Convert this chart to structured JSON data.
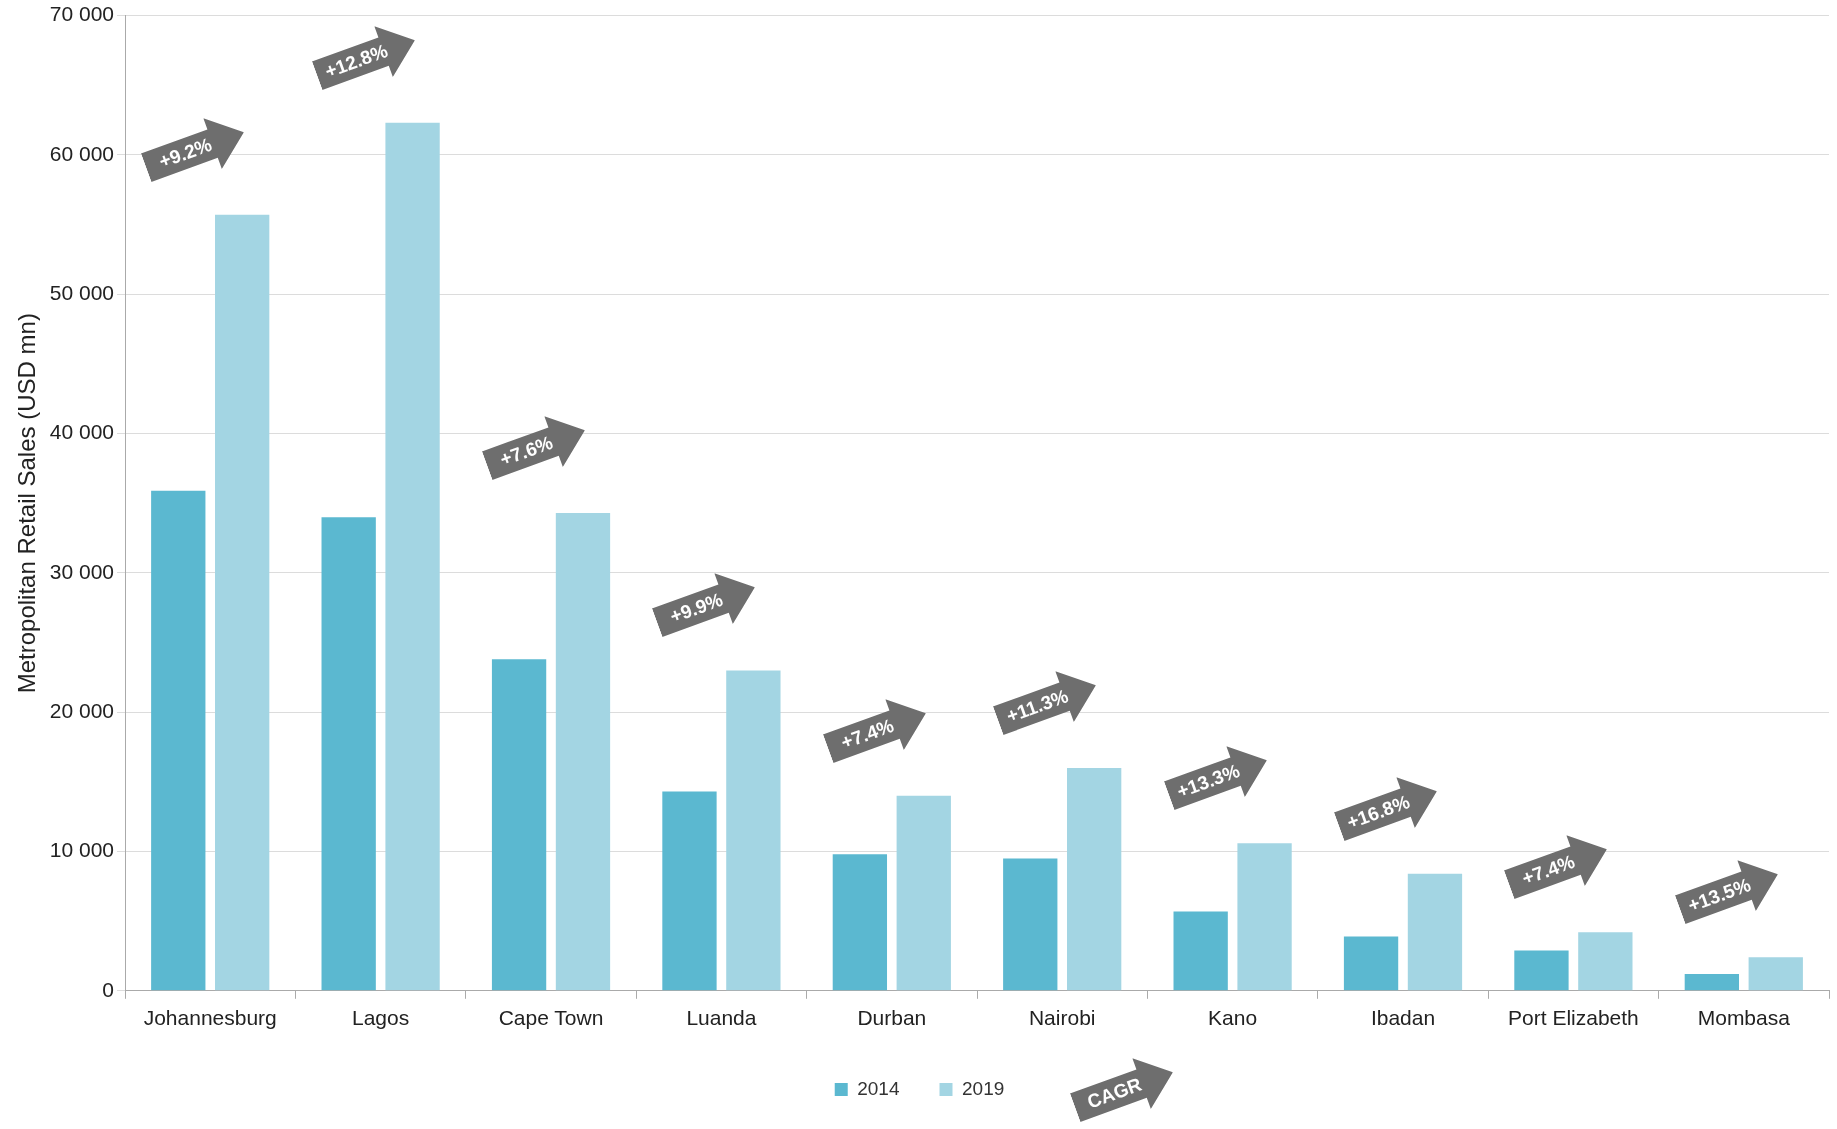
{
  "chart_data": {
    "type": "bar",
    "ylabel": "Metropolitan Retail Sales (USD mn)",
    "categories": [
      "Johannesburg",
      "Lagos",
      "Cape Town",
      "Luanda",
      "Durban",
      "Nairobi",
      "Kano",
      "Ibadan",
      "Port Elizabeth",
      "Mombasa"
    ],
    "series": [
      {
        "name": "2014",
        "color": "#5bb8d0",
        "values": [
          35900,
          34000,
          23800,
          14300,
          9800,
          9500,
          5700,
          3900,
          2900,
          1200
        ]
      },
      {
        "name": "2019",
        "color": "#a3d5e3",
        "values": [
          55700,
          62300,
          34300,
          23000,
          14000,
          16000,
          10600,
          8400,
          4200,
          2400
        ]
      }
    ],
    "ylim": [
      0,
      70000
    ],
    "yticks": [
      {
        "value": 0,
        "label": "0"
      },
      {
        "value": 10000,
        "label": "10 000"
      },
      {
        "value": 20000,
        "label": "20 000"
      },
      {
        "value": 30000,
        "label": "30 000"
      },
      {
        "value": 40000,
        "label": "40 000"
      },
      {
        "value": 50000,
        "label": "50 000"
      },
      {
        "value": 60000,
        "label": "60 000"
      },
      {
        "value": 70000,
        "label": "70 000"
      }
    ],
    "grid": "y",
    "legend": "bottom",
    "annotations": [
      "+9.2%",
      "+12.8%",
      "+7.6%",
      "+9.9%",
      "+7.4%",
      "+11.3%",
      "+13.3%",
      "+16.8%",
      "+7.4%",
      "+13.5%",
      "CAGR"
    ]
  }
}
